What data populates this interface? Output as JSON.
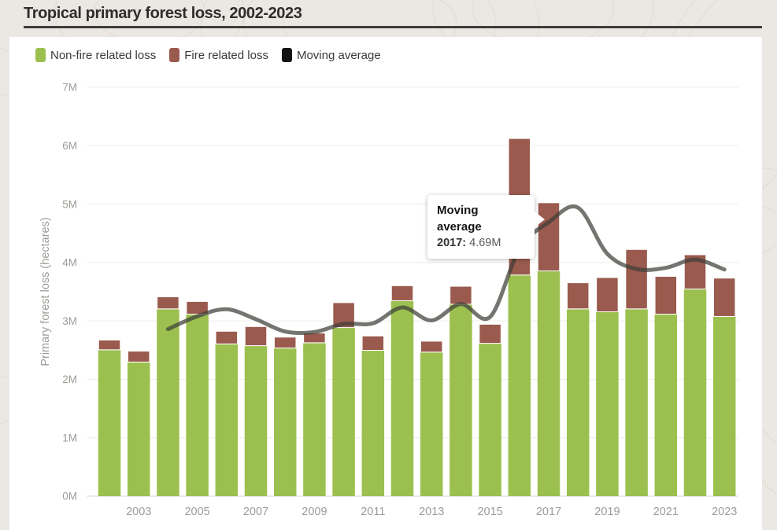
{
  "page": {
    "title": "Tropical primary forest loss, 2002-2023"
  },
  "legend": [
    {
      "label": "Non-fire related loss",
      "color": "#9cc04f"
    },
    {
      "label": "Fire related loss",
      "color": "#9a5a4e"
    },
    {
      "label": "Moving average",
      "color": "#141414"
    }
  ],
  "tooltip": {
    "title": "Moving average",
    "year_label": "2017:",
    "value": "4.69M"
  },
  "chart_data": {
    "type": "bar",
    "stacked": true,
    "title": "Tropical primary forest loss, 2002-2023",
    "xlabel": "",
    "ylabel": "Primary forest loss (hectares)",
    "units": "million hectares",
    "ylim": [
      0,
      7
    ],
    "ytick_labels": [
      "0M",
      "1M",
      "2M",
      "3M",
      "4M",
      "5M",
      "6M",
      "7M"
    ],
    "xtick_labels": [
      "2003",
      "2005",
      "2007",
      "2009",
      "2011",
      "2013",
      "2015",
      "2017",
      "2019",
      "2021",
      "2023"
    ],
    "grid": true,
    "legend_position": "top-left",
    "categories": [
      2002,
      2003,
      2004,
      2005,
      2006,
      2007,
      2008,
      2009,
      2010,
      2011,
      2012,
      2013,
      2014,
      2015,
      2016,
      2017,
      2018,
      2019,
      2020,
      2021,
      2022,
      2023
    ],
    "series": [
      {
        "name": "Non-fire related loss",
        "color": "#9cc04f",
        "values": [
          2.5,
          2.29,
          3.2,
          3.11,
          2.6,
          2.57,
          2.53,
          2.62,
          2.88,
          2.49,
          3.34,
          2.46,
          3.28,
          2.61,
          3.78,
          3.85,
          3.2,
          3.15,
          3.2,
          3.11,
          3.54,
          3.07
        ]
      },
      {
        "name": "Fire related loss",
        "color": "#9a5a4e",
        "values": [
          0.18,
          0.2,
          0.22,
          0.23,
          0.23,
          0.34,
          0.2,
          0.18,
          0.44,
          0.26,
          0.27,
          0.2,
          0.32,
          0.34,
          2.35,
          1.18,
          0.46,
          0.6,
          1.03,
          0.66,
          0.6,
          0.67
        ]
      }
    ],
    "moving_average": {
      "name": "Moving average",
      "color": "#3f3e39",
      "start_year": 2004,
      "values": [
        2.86,
        3.08,
        3.2,
        3.03,
        2.82,
        2.81,
        2.95,
        2.96,
        3.23,
        3.01,
        3.29,
        3.07,
        4.23,
        4.69,
        4.94,
        4.15,
        3.89,
        3.91,
        4.05,
        3.88
      ]
    }
  }
}
